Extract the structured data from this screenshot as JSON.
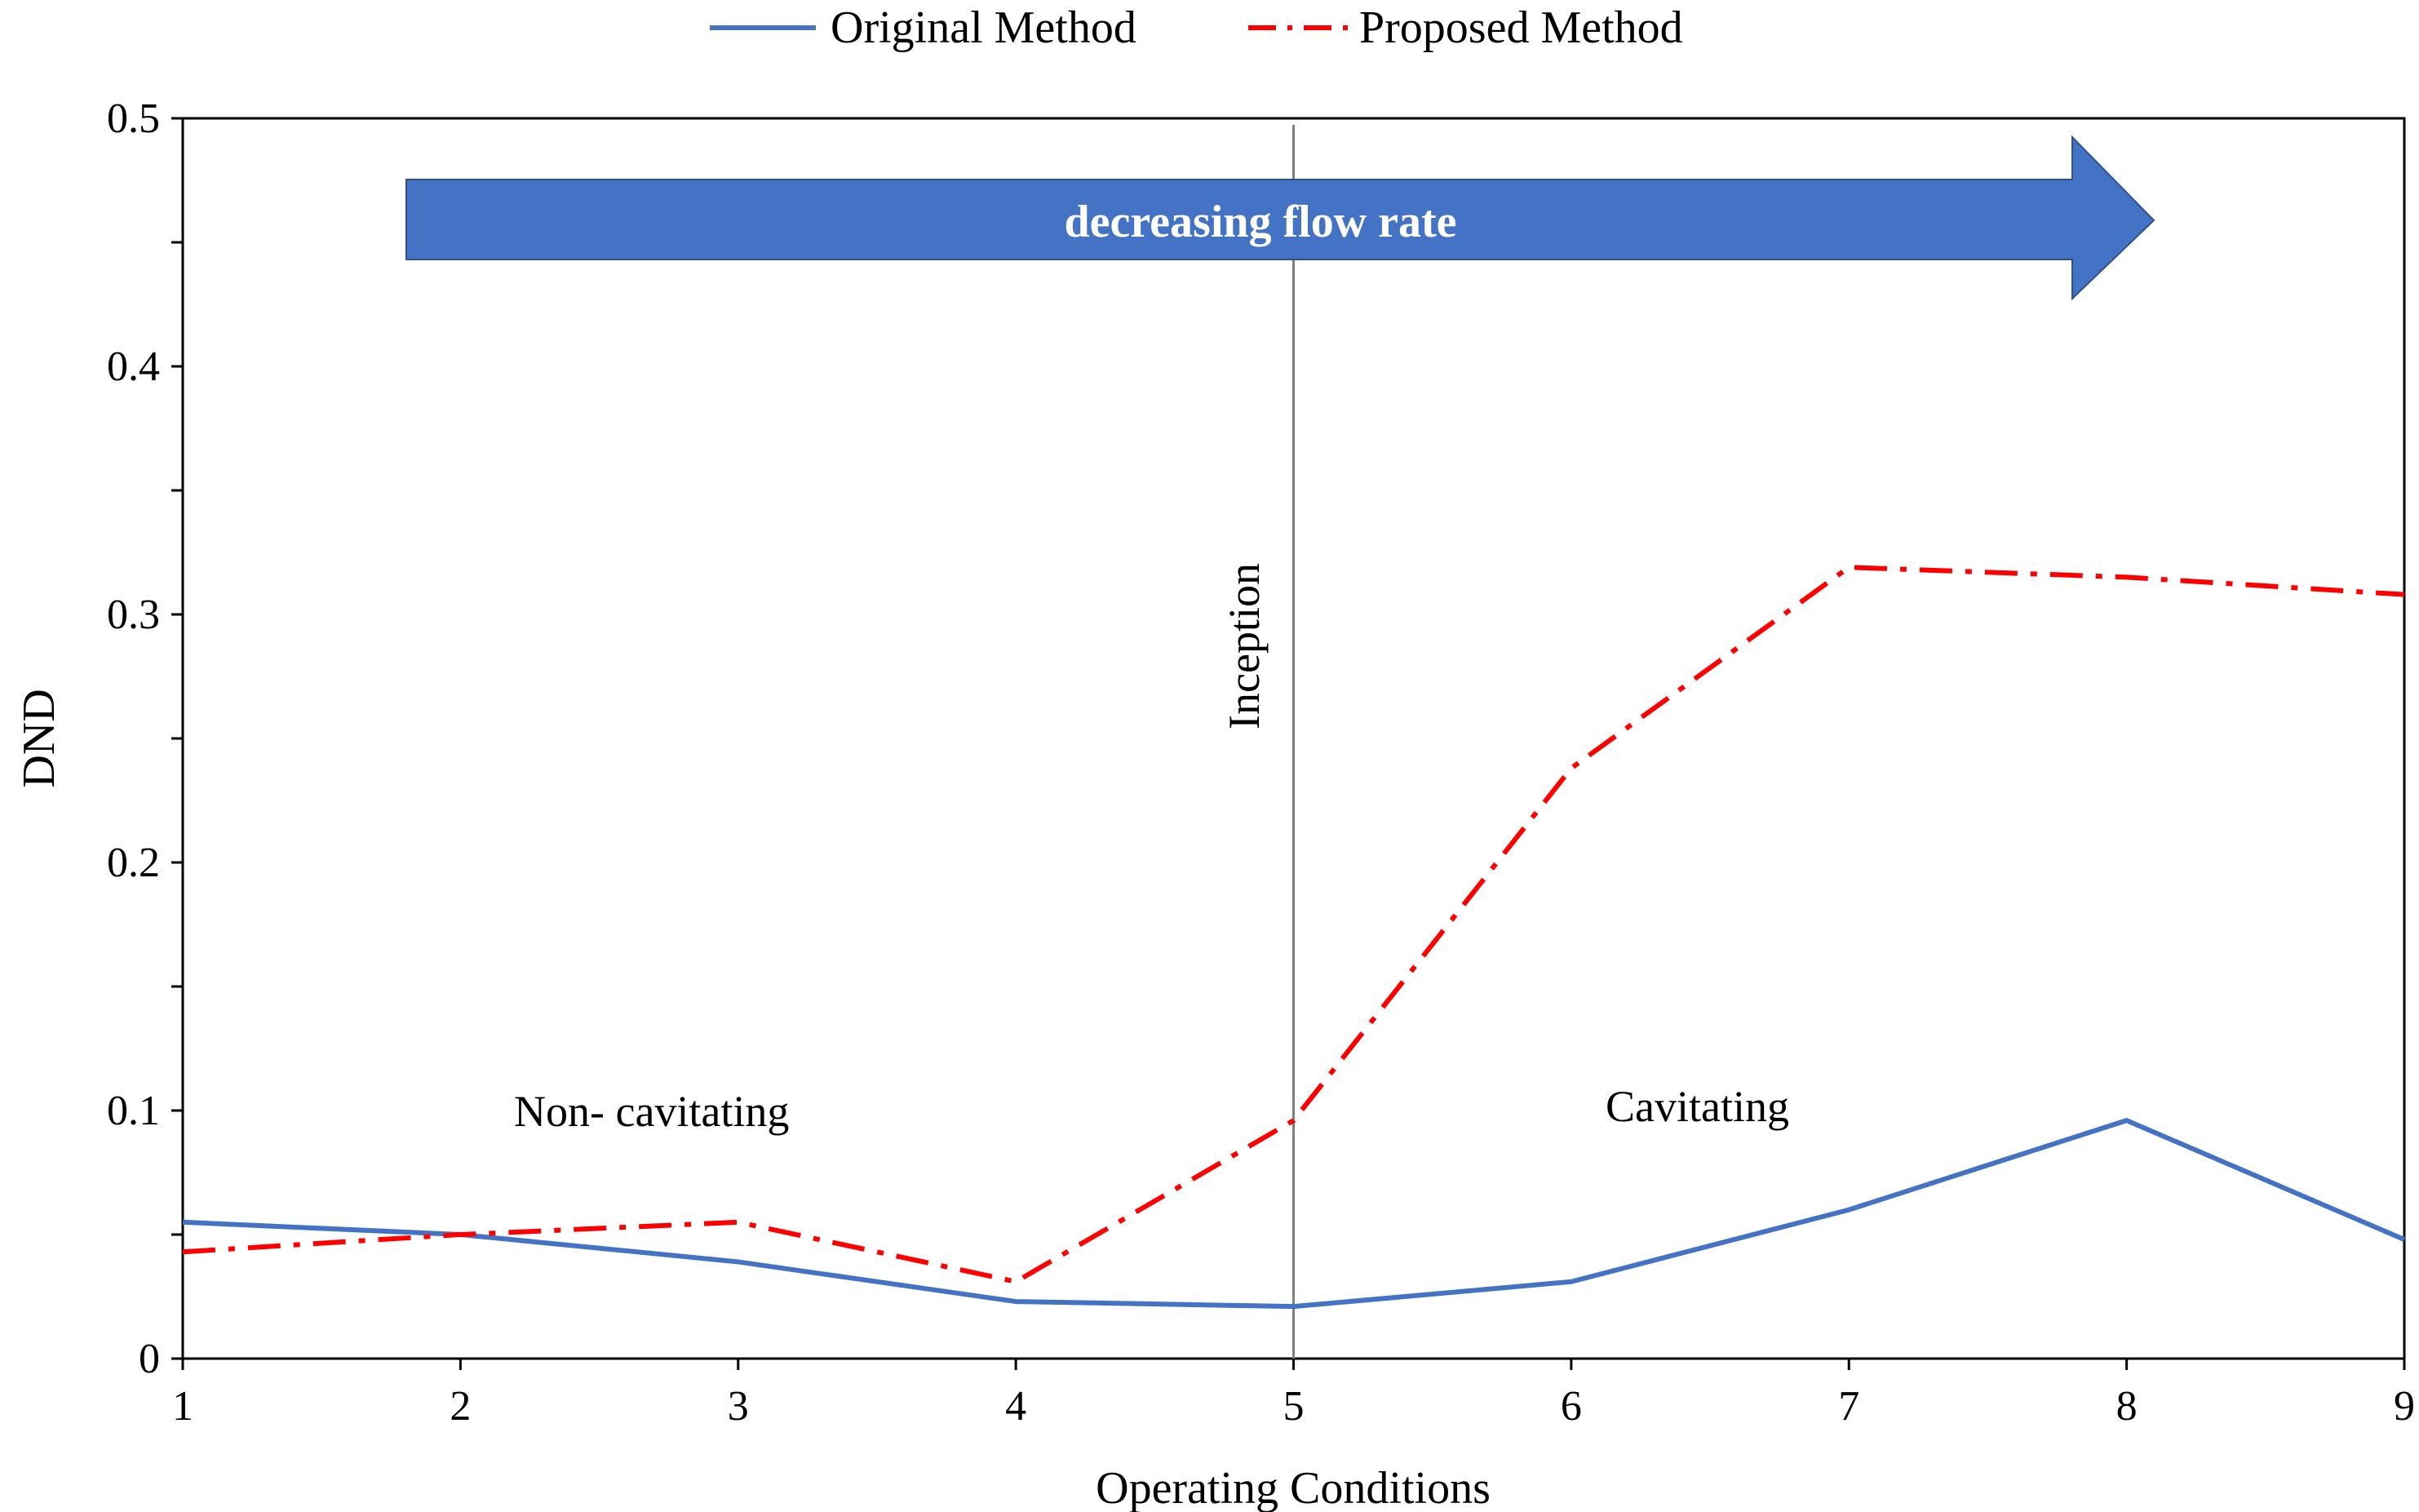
{
  "chart_data": {
    "type": "line",
    "xlabel": "Operating Conditions",
    "ylabel": "DND",
    "x": [
      1,
      2,
      3,
      4,
      5,
      6,
      7,
      8,
      9
    ],
    "xlim": [
      1,
      9
    ],
    "ylim": [
      0,
      0.5
    ],
    "xticks": [
      "1",
      "2",
      "3",
      "4",
      "5",
      "6",
      "7",
      "8",
      "9"
    ],
    "yticks": [
      "0",
      "0.1",
      "0.2",
      "0.3",
      "0.4",
      "0.5"
    ],
    "grid": false,
    "legend": "top",
    "series": [
      {
        "name": "Original Method",
        "values": [
          0.055,
          0.05,
          0.039,
          0.023,
          0.021,
          0.031,
          0.06,
          0.096,
          0.048
        ],
        "color": "#4472C4",
        "style": "solid"
      },
      {
        "name": "Proposed Method",
        "values": [
          0.043,
          0.05,
          0.055,
          0.031,
          0.096,
          0.238,
          0.319,
          0.315,
          0.308
        ],
        "color": "#FF0000",
        "style": "dash-dot"
      }
    ],
    "annotations": {
      "arrow_text": "decreasing flow rate",
      "arrow_color": "#4472C4",
      "inception_label": "Inception",
      "inception_x": 5,
      "non_cavitating_label": "Non- cavitating",
      "cavitating_label": "Cavitating"
    }
  }
}
